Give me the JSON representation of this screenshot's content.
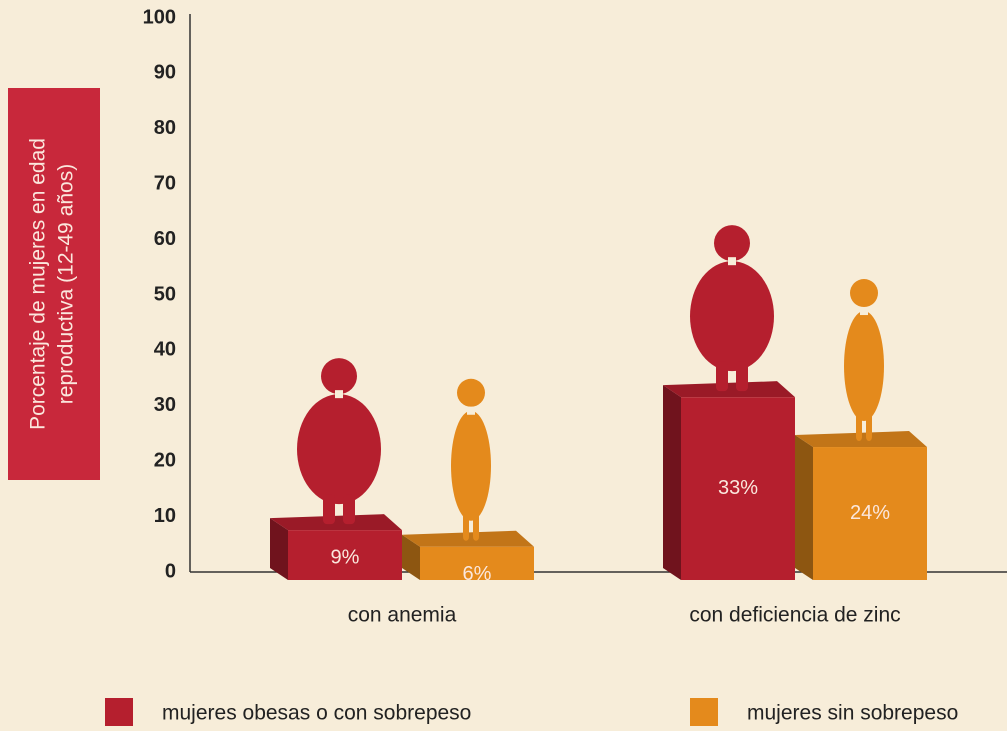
{
  "chart_data": {
    "type": "bar",
    "ylabel": [
      "Porcentaje de mujeres en edad",
      "reproductiva (12-49 años)"
    ],
    "categories": [
      "con anemia",
      "con deficiencia de zinc"
    ],
    "series": [
      {
        "name": "mujeres obesas o con sobrepeso",
        "color": "#b51f2e",
        "values": [
          9,
          33
        ],
        "value_labels": [
          "9%",
          "33%"
        ]
      },
      {
        "name": "mujeres sin sobrepeso",
        "color": "#e48a1c",
        "values": [
          6,
          24
        ],
        "value_labels": [
          "6%",
          "24%"
        ]
      }
    ],
    "ylim": [
      0,
      100
    ],
    "yticks": [
      0,
      10,
      20,
      30,
      40,
      50,
      60,
      70,
      80,
      90,
      100
    ]
  }
}
